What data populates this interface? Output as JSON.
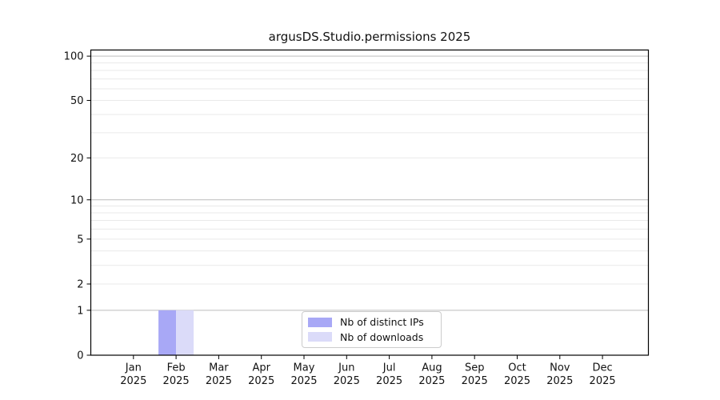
{
  "chart_data": {
    "type": "bar",
    "title": "argusDS.Studio.permissions 2025",
    "categories": [
      "Jan",
      "Feb",
      "Mar",
      "Apr",
      "May",
      "Jun",
      "Jul",
      "Aug",
      "Sep",
      "Oct",
      "Nov",
      "Dec"
    ],
    "year_label": "2025",
    "series": [
      {
        "name": "Nb of distinct IPs",
        "color": "#a8a8f6",
        "values": [
          0,
          1,
          0,
          0,
          0,
          0,
          0,
          0,
          0,
          0,
          0,
          0
        ]
      },
      {
        "name": "Nb of downloads",
        "color": "#dbdbf9",
        "values": [
          0,
          1,
          0,
          0,
          0,
          0,
          0,
          0,
          0,
          0,
          0,
          0
        ]
      }
    ],
    "y_axis": {
      "scale": "log1p",
      "tick_labels": [
        "0",
        "1",
        "2",
        "5",
        "10",
        "20",
        "50",
        "100"
      ],
      "tick_values": [
        0,
        1,
        2,
        5,
        10,
        20,
        50,
        100
      ],
      "major_grid": [
        1,
        10,
        100
      ],
      "minor_grid": [
        2,
        3,
        4,
        5,
        6,
        7,
        8,
        9,
        20,
        30,
        40,
        50,
        60,
        70,
        80,
        90
      ],
      "ylim": [
        0,
        110
      ]
    },
    "grid": "on",
    "legend_position": "lower center",
    "colors": {
      "axis": "#000000",
      "major_grid": "#bcbcbc",
      "minor_grid": "#e9e9e9",
      "tick_text": "#111111",
      "background": "#ffffff"
    }
  }
}
